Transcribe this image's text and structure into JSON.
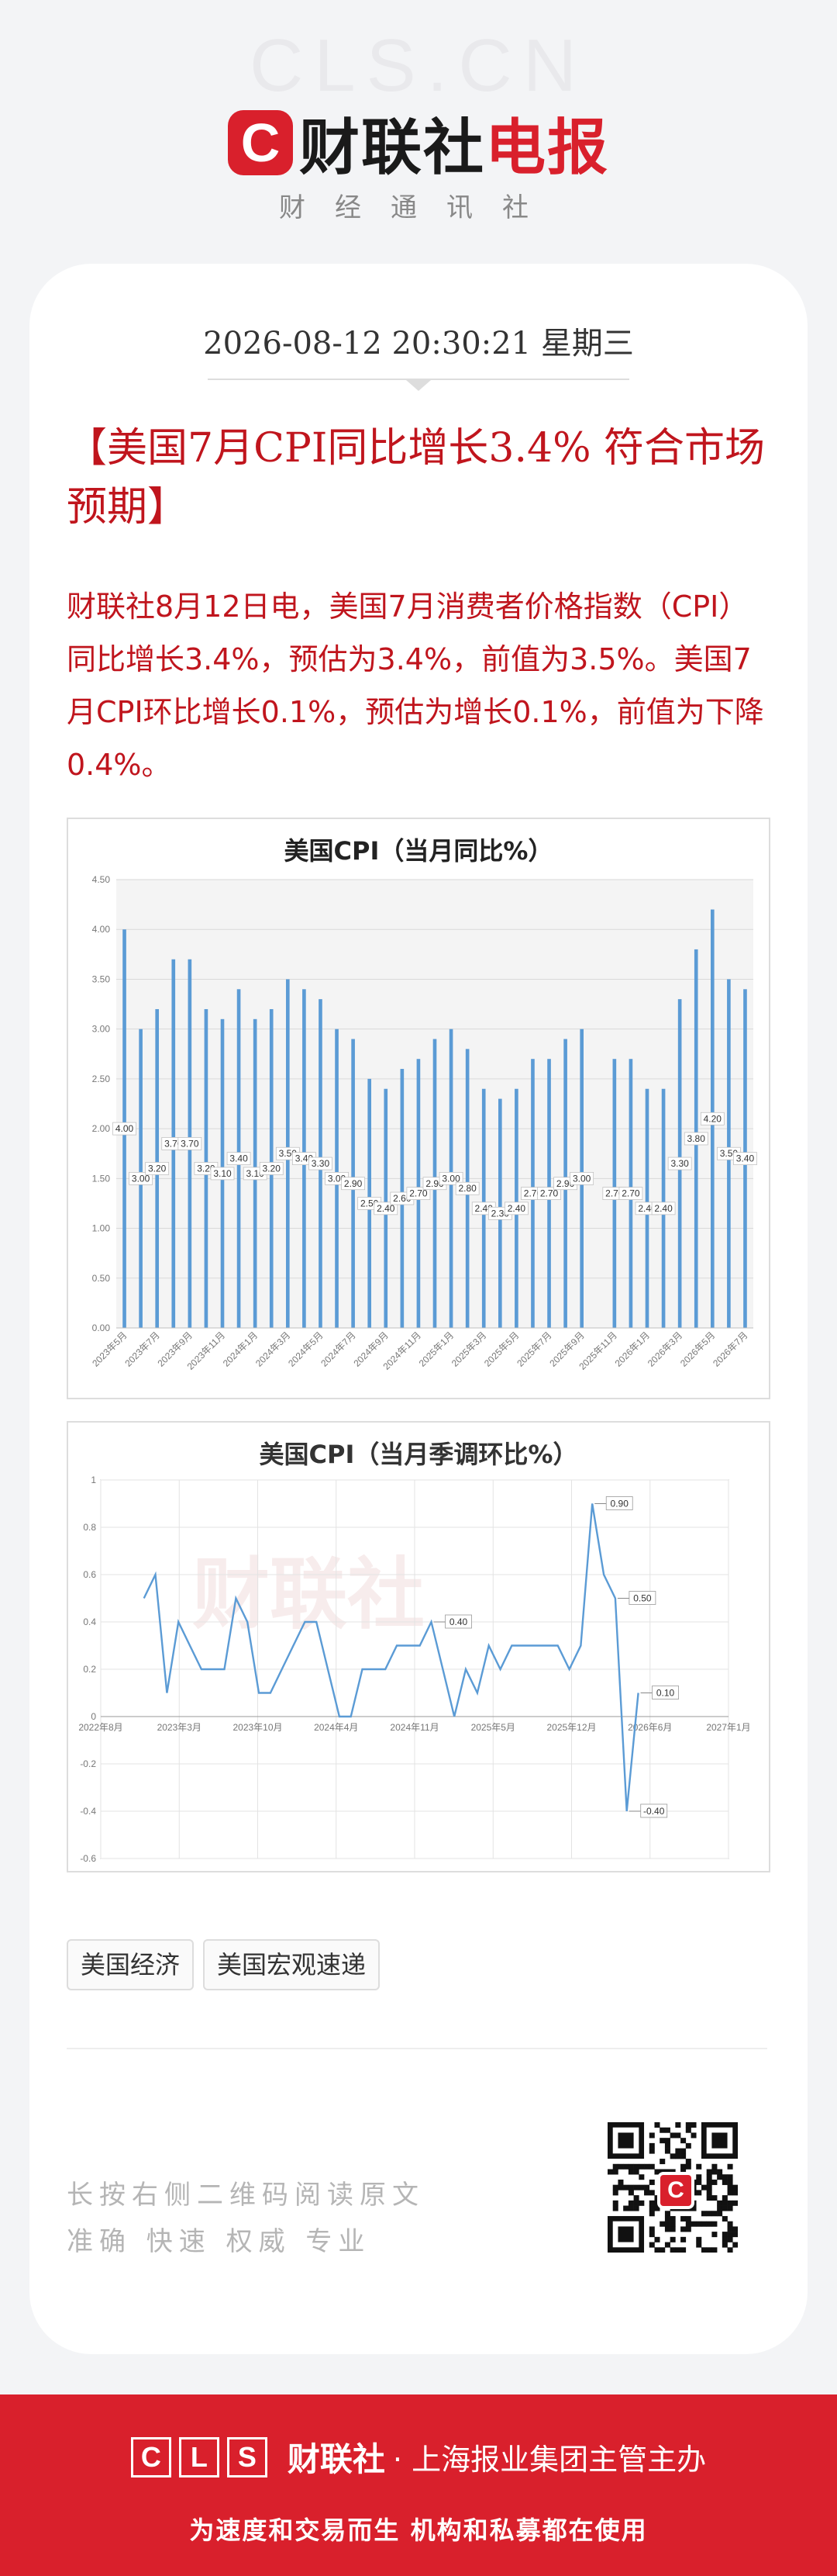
{
  "header": {
    "watermark": "CLS.CN",
    "logo_letter": "C",
    "brand_black": "财联社",
    "brand_red": "电报",
    "subtitle": "财经通讯社"
  },
  "article": {
    "datetime": "2026-08-12 20:30:21 星期三",
    "title": "【美国7月CPI同比增长3.4% 符合市场预期】",
    "body": "财联社8月12日电，美国7月消费者价格指数（CPI）同比增长3.4%，预估为3.4%，前值为3.5%。美国7月CPI环比增长0.1%，预估为增长0.1%，前值为下降0.4%。"
  },
  "chart_watermark": "财联社",
  "chart_data": [
    {
      "type": "bar",
      "title": "美国CPI（当月同比%）",
      "ylim": [
        0,
        4.5
      ],
      "yticks": [
        "0.00",
        "0.50",
        "1.00",
        "1.50",
        "2.00",
        "2.50",
        "3.00",
        "3.50",
        "4.00",
        "4.50"
      ],
      "categories": [
        "2023年5月",
        "2023年6月",
        "2023年7月",
        "2023年8月",
        "2023年9月",
        "2023年10月",
        "2023年11月",
        "2023年12月",
        "2024年1月",
        "2024年2月",
        "2024年3月",
        "2024年4月",
        "2024年5月",
        "2024年6月",
        "2024年7月",
        "2024年8月",
        "2024年9月",
        "2024年10月",
        "2024年11月",
        "2024年12月",
        "2025年1月",
        "2025年2月",
        "2025年3月",
        "2025年4月",
        "2025年5月",
        "2025年6月",
        "2025年7月",
        "2025年8月",
        "2025年9月",
        "2025年10月",
        "2025年11月",
        "2025年12月",
        "2026年1月",
        "2026年2月",
        "2026年3月",
        "2026年4月",
        "2026年5月",
        "2026年6月",
        "2026年7月"
      ],
      "values": [
        4.0,
        3.0,
        3.2,
        3.7,
        3.7,
        3.2,
        3.1,
        3.4,
        3.1,
        3.2,
        3.5,
        3.4,
        3.3,
        3.0,
        2.9,
        2.5,
        2.4,
        2.6,
        2.7,
        2.9,
        3.0,
        2.8,
        2.4,
        2.3,
        2.4,
        2.7,
        2.7,
        2.9,
        3.0,
        null,
        2.7,
        2.7,
        2.4,
        2.4,
        3.3,
        3.8,
        4.2,
        3.5,
        3.4
      ],
      "data_labels": [
        "4.00",
        "3.00",
        "3.20",
        "3.70",
        "3.70",
        "3.20",
        "3.10",
        "3.40",
        "3.10",
        "3.20",
        "3.50",
        "3.40",
        "3.30",
        "3.00",
        "2.90",
        "2.50",
        "2.40",
        "2.60",
        "2.70",
        "2.90",
        "3.00",
        "2.80",
        "2.40",
        "2.30",
        "2.40",
        "2.70",
        "2.70",
        "2.90",
        "3.00",
        "",
        "2.70",
        "2.70",
        "2.40",
        "2.40",
        "3.30",
        "3.80",
        "4.20",
        "3.50",
        "3.40"
      ],
      "xtick_labels": [
        "2023年5月",
        "2023年7月",
        "2023年9月",
        "2023年11月",
        "2024年1月",
        "2024年3月",
        "2024年5月",
        "2024年7月",
        "2024年9月",
        "2024年11月",
        "2025年1月",
        "2025年3月",
        "2025年5月",
        "2025年7月",
        "2025年9月",
        "2025年11月",
        "2026年1月",
        "2026年3月",
        "2026年5月",
        "2026年7月"
      ],
      "bar_color": "#5b9bd5",
      "grid": true
    },
    {
      "type": "line",
      "title": "美国CPI（当月季调环比%）",
      "ylim": [
        -0.6,
        1
      ],
      "yticks": [
        "1",
        "0.8",
        "0.6",
        "0.4",
        "0.2",
        "0",
        "-0.2",
        "-0.4",
        "-0.6"
      ],
      "xtick_labels": [
        "2022年8月",
        "2023年3月",
        "2023年10月",
        "2024年4月",
        "2024年11月",
        "2025年5月",
        "2025年12月",
        "2026年6月",
        "2027年1月"
      ],
      "values": [
        0.5,
        0.6,
        0.1,
        0.4,
        0.3,
        0.2,
        0.2,
        0.2,
        0.5,
        0.4,
        0.1,
        0.1,
        0.2,
        0.3,
        0.4,
        0.4,
        0.2,
        0.0,
        0.0,
        0.2,
        0.2,
        0.2,
        0.3,
        0.3,
        0.3,
        0.4,
        0.2,
        0.0,
        0.2,
        0.1,
        0.3,
        0.2,
        0.3,
        0.3,
        0.3,
        0.3,
        0.3,
        0.2,
        0.3,
        0.9,
        0.6,
        0.5,
        -0.4,
        0.1
      ],
      "callouts": [
        {
          "index": 25,
          "label": "0.40"
        },
        {
          "index": 39,
          "label": "0.90"
        },
        {
          "index": 41,
          "label": "0.50"
        },
        {
          "index": 42,
          "label": "-0.40"
        },
        {
          "index": 43,
          "label": "0.10"
        }
      ],
      "line_color": "#5b9bd5",
      "grid": true
    }
  ],
  "tags": [
    "美国经济",
    "美国宏观速递"
  ],
  "hints": [
    "长按右侧二维码阅读原文",
    "准确 快速 权威 专业"
  ],
  "qr_badge": "C",
  "footer": {
    "cls_letters": [
      "C",
      "L",
      "S"
    ],
    "brand": "财联社",
    "sub": "· 上海报业集团主管主办",
    "slogan": "为速度和交易而生 机构和私募都在使用"
  },
  "colors": {
    "brand_red": "#d9202c",
    "title_red": "#c0151d",
    "series_blue": "#5b9bd5"
  }
}
